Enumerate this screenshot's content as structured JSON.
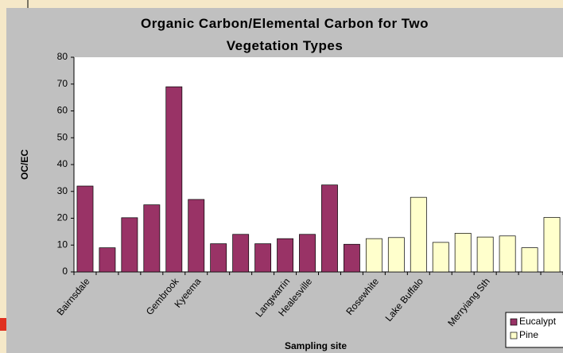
{
  "chart_data": {
    "type": "bar",
    "title": "Organic Carbon/Elemental Carbon for Two Vegetation Types",
    "x_label": "Sampling site",
    "y_label": "OC/EC",
    "categories": [
      "Bairnsdale",
      null,
      null,
      null,
      "Gembrook",
      "Kyeema",
      null,
      null,
      null,
      "Langwarrin",
      "Healesville",
      null,
      null,
      "Rosewhite",
      null,
      "Lake Buffalo",
      null,
      null,
      "Merryiang Sth",
      null,
      null,
      null
    ],
    "series": [
      {
        "name": "Eucalypt",
        "color": "#993366",
        "values": [
          32,
          9,
          20.2,
          25,
          69,
          27,
          10.5,
          14,
          10.5,
          12.4,
          14,
          32.4,
          10.3,
          null,
          null,
          null,
          null,
          null,
          null,
          null,
          null,
          null
        ]
      },
      {
        "name": "Pine",
        "color": "#ffffcc",
        "values": [
          null,
          null,
          null,
          null,
          null,
          null,
          null,
          null,
          null,
          null,
          null,
          null,
          null,
          12.4,
          12.8,
          27.8,
          11,
          14.4,
          13,
          13.4,
          9,
          20.3
        ]
      }
    ],
    "ylim": [
      0,
      80
    ],
    "yticks": [
      0,
      10,
      20,
      30,
      40,
      50,
      60,
      70,
      80
    ],
    "grid": false,
    "legend": "bottom-right"
  }
}
